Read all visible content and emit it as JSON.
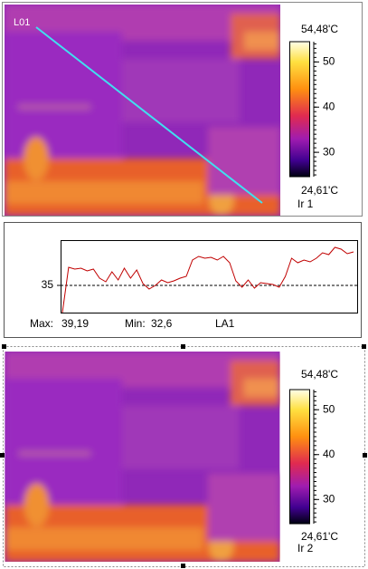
{
  "images": [
    {
      "line_label": "L01",
      "name": "Ir 1",
      "scale_max_label": "54,48'C",
      "scale_min_label": "24,61'C",
      "scale_lim": [
        24.61,
        54.48
      ],
      "scale_ticks": [
        30,
        40,
        50
      ]
    },
    {
      "name": "Ir 2",
      "scale_max_label": "54,48'C",
      "scale_min_label": "24,61'C",
      "scale_lim": [
        24.61,
        54.48
      ],
      "scale_ticks": [
        30,
        40,
        50
      ]
    }
  ],
  "chart_data": {
    "type": "line",
    "color": "#c00000",
    "values": [
      32.0,
      37.0,
      36.8,
      36.9,
      36.6,
      36.8,
      35.8,
      35.4,
      36.5,
      35.6,
      36.9,
      35.8,
      36.7,
      35.2,
      34.6,
      35.0,
      35.6,
      35.3,
      35.5,
      35.8,
      36.0,
      37.8,
      38.2,
      38.0,
      38.1,
      37.8,
      38.2,
      37.5,
      35.5,
      34.8,
      35.6,
      34.7,
      35.3,
      35.2,
      35.1,
      34.8,
      36.0,
      38.0,
      37.5,
      37.8,
      37.6,
      38.0,
      38.6,
      38.4,
      39.2,
      39.0,
      38.5,
      38.7
    ],
    "ylim": [
      32,
      40
    ],
    "yticks": [
      35
    ],
    "grid": true,
    "max_label": "Max:",
    "max_value": "39,19",
    "min_label": "Min:",
    "min_value": "32,6",
    "series_label": "LA1"
  }
}
